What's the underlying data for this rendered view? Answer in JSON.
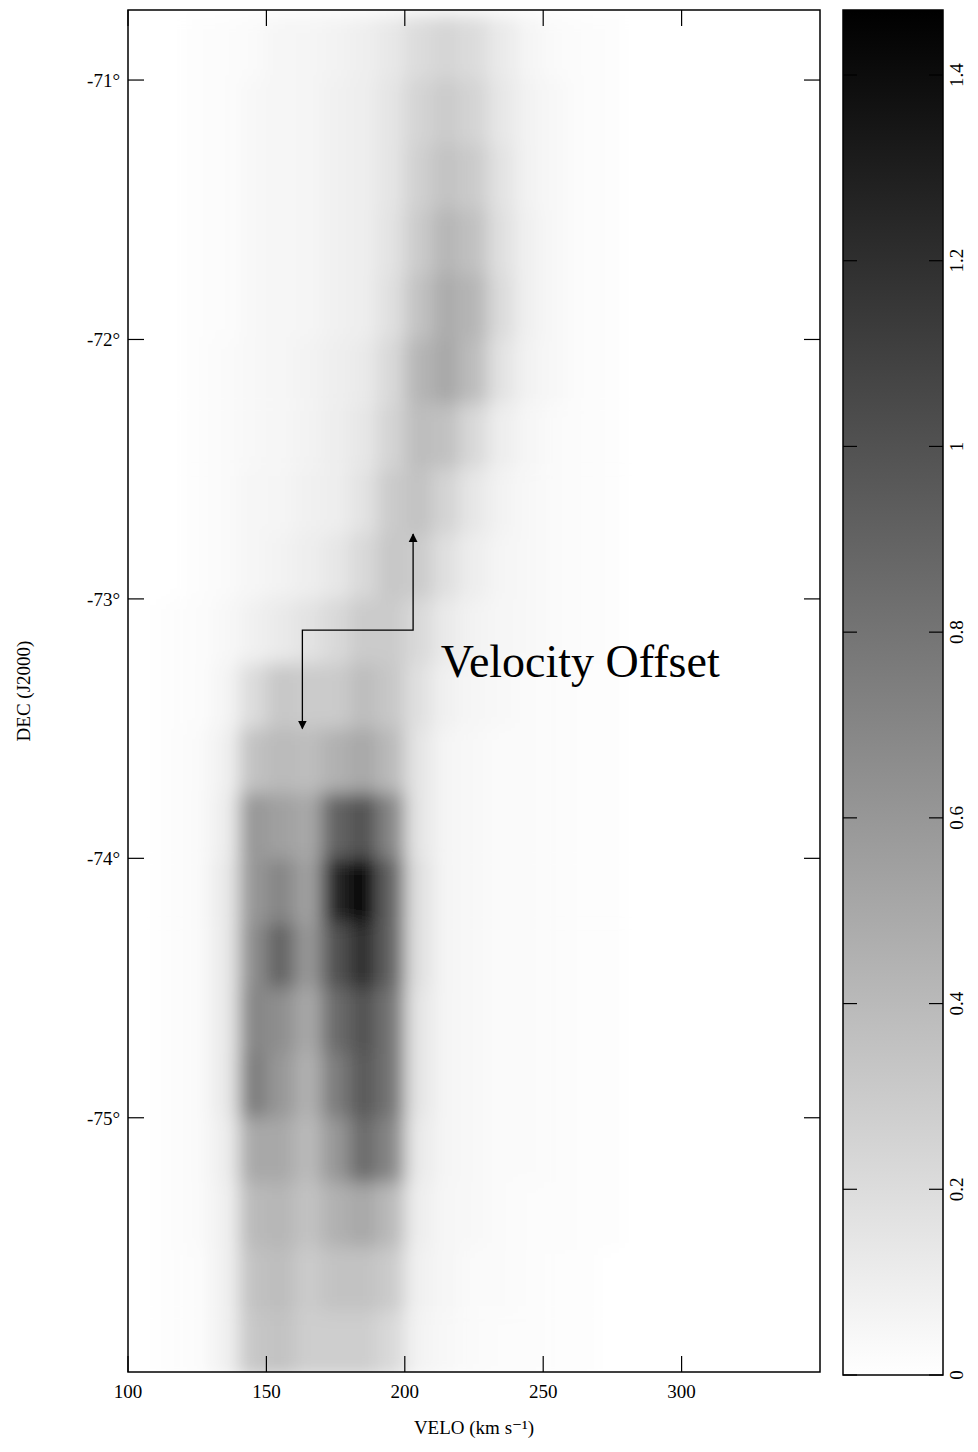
{
  "chart_data": {
    "type": "heatmap",
    "xlabel": "VELO (km s⁻¹)",
    "ylabel": "DEC (J2000)",
    "xlim": [
      100,
      350
    ],
    "ylim": [
      -75.98,
      -70.73
    ],
    "xticks": [
      100,
      150,
      200,
      250,
      300
    ],
    "yticks": [
      {
        "value": -71,
        "label": "-71°"
      },
      {
        "value": -72,
        "label": "-72°"
      },
      {
        "value": -73,
        "label": "-73°"
      },
      {
        "value": -74,
        "label": "-74°"
      },
      {
        "value": -75,
        "label": "-75°"
      }
    ],
    "x_edges": [
      100,
      110,
      120,
      130,
      140,
      150,
      160,
      170,
      180,
      190,
      200,
      210,
      220,
      230,
      240,
      250,
      260,
      270,
      280,
      290,
      300,
      310,
      320,
      330,
      340,
      350
    ],
    "y_edges": [
      -70.75,
      -71,
      -71.25,
      -71.5,
      -71.75,
      -72,
      -72.25,
      -72.5,
      -72.75,
      -73,
      -73.25,
      -73.5,
      -73.75,
      -74,
      -74.25,
      -74.5,
      -74.75,
      -75,
      -75.25,
      -75.5,
      -75.75,
      -76
    ],
    "cells": [
      [
        0,
        0,
        0.01,
        0.02,
        0.03,
        0.05,
        0.06,
        0.07,
        0.09,
        0.13,
        0.2,
        0.24,
        0.2,
        0.12,
        0.06,
        0.03,
        0.02,
        0.01,
        0,
        0,
        0,
        0,
        0,
        0,
        0
      ],
      [
        0,
        0,
        0.01,
        0.02,
        0.04,
        0.05,
        0.06,
        0.08,
        0.1,
        0.15,
        0.25,
        0.3,
        0.25,
        0.14,
        0.07,
        0.04,
        0.02,
        0.01,
        0,
        0,
        0,
        0,
        0,
        0,
        0
      ],
      [
        0,
        0,
        0.01,
        0.02,
        0.04,
        0.05,
        0.06,
        0.08,
        0.1,
        0.15,
        0.27,
        0.35,
        0.3,
        0.16,
        0.07,
        0.04,
        0.02,
        0.01,
        0,
        0,
        0,
        0,
        0,
        0,
        0
      ],
      [
        0,
        0,
        0.01,
        0.02,
        0.04,
        0.05,
        0.06,
        0.08,
        0.1,
        0.16,
        0.3,
        0.42,
        0.36,
        0.18,
        0.08,
        0.04,
        0.02,
        0.01,
        0,
        0,
        0,
        0,
        0,
        0,
        0
      ],
      [
        0,
        0,
        0.01,
        0.02,
        0.04,
        0.05,
        0.06,
        0.08,
        0.1,
        0.18,
        0.35,
        0.48,
        0.42,
        0.2,
        0.08,
        0.04,
        0.02,
        0.01,
        0,
        0,
        0,
        0,
        0,
        0,
        0
      ],
      [
        0,
        0,
        0.01,
        0.03,
        0.04,
        0.05,
        0.07,
        0.09,
        0.12,
        0.22,
        0.42,
        0.5,
        0.38,
        0.16,
        0.07,
        0.04,
        0.02,
        0.01,
        0,
        0,
        0,
        0,
        0,
        0,
        0
      ],
      [
        0,
        0,
        0.01,
        0.03,
        0.04,
        0.05,
        0.07,
        0.1,
        0.14,
        0.25,
        0.38,
        0.36,
        0.22,
        0.1,
        0.05,
        0.03,
        0.02,
        0.01,
        0,
        0,
        0,
        0,
        0,
        0,
        0
      ],
      [
        0,
        0,
        0.01,
        0.03,
        0.05,
        0.06,
        0.08,
        0.1,
        0.16,
        0.3,
        0.35,
        0.25,
        0.14,
        0.07,
        0.04,
        0.03,
        0.02,
        0.01,
        0,
        0,
        0,
        0,
        0,
        0,
        0
      ],
      [
        0,
        0,
        0.01,
        0.03,
        0.05,
        0.07,
        0.1,
        0.14,
        0.22,
        0.32,
        0.3,
        0.18,
        0.1,
        0.06,
        0.04,
        0.03,
        0.02,
        0.01,
        0,
        0,
        0,
        0,
        0,
        0,
        0
      ],
      [
        0,
        0.01,
        0.02,
        0.04,
        0.08,
        0.12,
        0.16,
        0.22,
        0.3,
        0.3,
        0.22,
        0.12,
        0.07,
        0.05,
        0.04,
        0.03,
        0.02,
        0.01,
        0,
        0,
        0,
        0,
        0,
        0,
        0
      ],
      [
        0,
        0.01,
        0.02,
        0.06,
        0.2,
        0.32,
        0.3,
        0.3,
        0.38,
        0.32,
        0.18,
        0.08,
        0.05,
        0.04,
        0.03,
        0.02,
        0.01,
        0.01,
        0,
        0,
        0,
        0,
        0,
        0,
        0
      ],
      [
        0,
        0.01,
        0.03,
        0.08,
        0.35,
        0.4,
        0.38,
        0.45,
        0.5,
        0.4,
        0.15,
        0.06,
        0.04,
        0.03,
        0.03,
        0.02,
        0.01,
        0.01,
        0,
        0,
        0,
        0,
        0,
        0,
        0
      ],
      [
        0,
        0.01,
        0.03,
        0.1,
        0.6,
        0.55,
        0.5,
        0.9,
        1.0,
        0.7,
        0.15,
        0.06,
        0.04,
        0.03,
        0.03,
        0.02,
        0.01,
        0.01,
        0,
        0,
        0,
        0,
        0,
        0,
        0
      ],
      [
        0,
        0.01,
        0.03,
        0.12,
        0.6,
        0.7,
        0.55,
        1.25,
        1.45,
        0.9,
        0.18,
        0.06,
        0.04,
        0.03,
        0.03,
        0.02,
        0.01,
        0.01,
        0,
        0,
        0,
        0,
        0,
        0,
        0
      ],
      [
        0,
        0.01,
        0.03,
        0.12,
        0.65,
        0.9,
        0.6,
        1.0,
        1.2,
        0.9,
        0.18,
        0.06,
        0.04,
        0.03,
        0.03,
        0.02,
        0.01,
        0.01,
        0,
        0,
        0,
        0,
        0,
        0,
        0
      ],
      [
        0,
        0.01,
        0.03,
        0.12,
        0.7,
        0.65,
        0.5,
        0.85,
        1.0,
        0.8,
        0.15,
        0.06,
        0.04,
        0.03,
        0.03,
        0.02,
        0.01,
        0.01,
        0,
        0,
        0,
        0,
        0,
        0,
        0
      ],
      [
        0,
        0.01,
        0.03,
        0.12,
        0.75,
        0.6,
        0.45,
        0.75,
        0.95,
        0.8,
        0.15,
        0.06,
        0.04,
        0.03,
        0.03,
        0.02,
        0.01,
        0.01,
        0,
        0,
        0,
        0,
        0,
        0,
        0
      ],
      [
        0,
        0.01,
        0.03,
        0.1,
        0.5,
        0.5,
        0.4,
        0.6,
        0.85,
        0.7,
        0.12,
        0.06,
        0.04,
        0.03,
        0.03,
        0.02,
        0.01,
        0.01,
        0,
        0,
        0,
        0,
        0,
        0,
        0
      ],
      [
        0,
        0.01,
        0.03,
        0.08,
        0.4,
        0.42,
        0.35,
        0.45,
        0.5,
        0.4,
        0.1,
        0.05,
        0.04,
        0.03,
        0.02,
        0.02,
        0.01,
        0.01,
        0,
        0,
        0,
        0,
        0,
        0,
        0
      ],
      [
        0,
        0.01,
        0.02,
        0.08,
        0.35,
        0.38,
        0.3,
        0.35,
        0.35,
        0.3,
        0.08,
        0.05,
        0.03,
        0.03,
        0.02,
        0.01,
        0.01,
        0,
        0,
        0,
        0,
        0,
        0,
        0,
        0
      ],
      [
        0,
        0.01,
        0.02,
        0.08,
        0.32,
        0.35,
        0.28,
        0.28,
        0.28,
        0.22,
        0.07,
        0.04,
        0.03,
        0.02,
        0.02,
        0.01,
        0.01,
        0,
        0,
        0,
        0,
        0,
        0,
        0,
        0
      ]
    ],
    "colorbar": {
      "range": [
        0,
        1.47
      ],
      "ticks": [
        0,
        0.2,
        0.4,
        0.6,
        0.8,
        1,
        1.2,
        1.4
      ]
    },
    "annotations": [
      {
        "text": "Velocity Offset",
        "x": 213,
        "y": -73.3,
        "arrow": [
          [
            163,
            -73.5
          ],
          [
            163,
            -73.12
          ],
          [
            203,
            -73.12
          ],
          [
            203,
            -72.75
          ]
        ]
      }
    ]
  }
}
